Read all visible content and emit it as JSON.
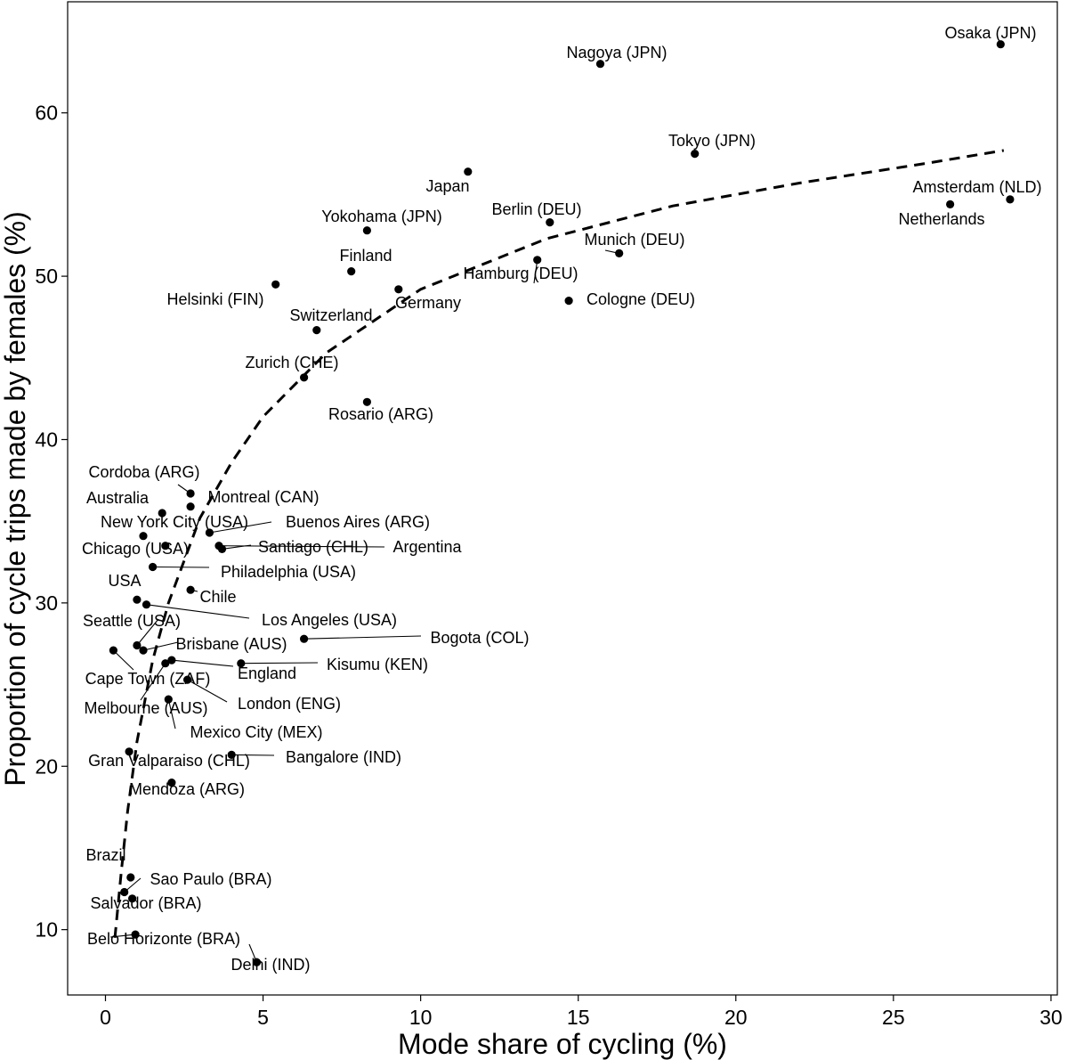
{
  "chart_data": {
    "type": "scatter",
    "title": "",
    "xlabel": "Mode share of cycling (%)",
    "ylabel": "Proportion of cycle trips made by females (%)",
    "xlim": [
      -1.2,
      30.2
    ],
    "ylim": [
      6.0,
      66.8
    ],
    "xticks": [
      0,
      5,
      10,
      15,
      20,
      25,
      30
    ],
    "yticks": [
      10,
      20,
      30,
      40,
      50,
      60
    ],
    "grid": false,
    "legend": "none",
    "trend": {
      "style": "dashed",
      "form": "logarithmic fit",
      "points": [
        [
          0.3,
          9.5
        ],
        [
          0.5,
          13.5
        ],
        [
          0.7,
          17.2
        ],
        [
          1.0,
          21.5
        ],
        [
          1.5,
          26.5
        ],
        [
          2.0,
          30.0
        ],
        [
          3.0,
          35.2
        ],
        [
          4.0,
          38.6
        ],
        [
          5.0,
          41.4
        ],
        [
          7.0,
          45.3
        ],
        [
          10.0,
          49.2
        ],
        [
          14.0,
          52.3
        ],
        [
          18.0,
          54.3
        ],
        [
          22.0,
          55.7
        ],
        [
          26.0,
          56.9
        ],
        [
          28.5,
          57.7
        ]
      ]
    },
    "points": [
      {
        "name": "Osaka (JPN)",
        "x": 28.4,
        "y": 64.2
      },
      {
        "name": "Nagoya (JPN)",
        "x": 15.7,
        "y": 63.0
      },
      {
        "name": "Tokyo (JPN)",
        "x": 18.7,
        "y": 57.5
      },
      {
        "name": "Japan",
        "x": 11.5,
        "y": 56.4
      },
      {
        "name": "Amsterdam (NLD)",
        "x": 28.7,
        "y": 54.7
      },
      {
        "name": "Netherlands",
        "x": 26.8,
        "y": 54.4
      },
      {
        "name": "Berlin (DEU)",
        "x": 14.1,
        "y": 53.3
      },
      {
        "name": "Yokohama (JPN)",
        "x": 8.3,
        "y": 52.8
      },
      {
        "name": "Munich (DEU)",
        "x": 16.3,
        "y": 51.4
      },
      {
        "name": "Hamburg (DEU)",
        "x": 13.7,
        "y": 51.0
      },
      {
        "name": "Finland",
        "x": 7.8,
        "y": 50.3
      },
      {
        "name": "Helsinki (FIN)",
        "x": 5.4,
        "y": 49.5
      },
      {
        "name": "Germany",
        "x": 9.3,
        "y": 49.2
      },
      {
        "name": "Cologne (DEU)",
        "x": 14.7,
        "y": 48.5
      },
      {
        "name": "Switzerland",
        "x": 6.7,
        "y": 46.7
      },
      {
        "name": "Zurich (CHE)",
        "x": 6.3,
        "y": 43.8
      },
      {
        "name": "Rosario (ARG)",
        "x": 8.3,
        "y": 42.3
      },
      {
        "name": "Cordoba (ARG)",
        "x": 2.7,
        "y": 36.7
      },
      {
        "name": "Montreal (CAN)",
        "x": 2.7,
        "y": 35.9
      },
      {
        "name": "Australia",
        "x": 1.8,
        "y": 35.5
      },
      {
        "name": "Buenos Aires (ARG)",
        "x": 3.3,
        "y": 34.3
      },
      {
        "name": "New York City (USA)",
        "x": 1.2,
        "y": 34.1
      },
      {
        "name": "Argentina",
        "x": 3.6,
        "y": 33.5
      },
      {
        "name": "Santiago (CHL)",
        "x": 3.7,
        "y": 33.3
      },
      {
        "name": "Chicago (USA)",
        "x": 1.9,
        "y": 33.5
      },
      {
        "name": "Philadelphia (USA)",
        "x": 1.5,
        "y": 32.2
      },
      {
        "name": "Chile",
        "x": 2.7,
        "y": 30.8
      },
      {
        "name": "USA",
        "x": 1.0,
        "y": 30.2
      },
      {
        "name": "Los Angeles (USA)",
        "x": 1.3,
        "y": 29.9
      },
      {
        "name": "Bogota (COL)",
        "x": 6.3,
        "y": 27.8
      },
      {
        "name": "Seattle (USA)",
        "x": 1.0,
        "y": 27.4
      },
      {
        "name": "Cape Town (ZAF)",
        "x": 0.25,
        "y": 27.1
      },
      {
        "name": "Brisbane (AUS)",
        "x": 1.2,
        "y": 27.1
      },
      {
        "name": "England",
        "x": 2.1,
        "y": 26.5
      },
      {
        "name": "Melbourne (AUS)",
        "x": 1.9,
        "y": 26.3
      },
      {
        "name": "Kisumu (KEN)",
        "x": 4.3,
        "y": 26.3
      },
      {
        "name": "London (ENG)",
        "x": 2.6,
        "y": 25.3
      },
      {
        "name": "Mexico City (MEX)",
        "x": 2.0,
        "y": 24.1
      },
      {
        "name": "Gran Valparaiso (CHL)",
        "x": 0.75,
        "y": 20.9
      },
      {
        "name": "Bangalore (IND)",
        "x": 4.0,
        "y": 20.7
      },
      {
        "name": "Mendoza (ARG)",
        "x": 2.1,
        "y": 19.0
      },
      {
        "name": "Brazil",
        "x": 0.8,
        "y": 13.2
      },
      {
        "name": "Sao Paulo (BRA)",
        "x": 0.6,
        "y": 12.3
      },
      {
        "name": "Salvador (BRA)",
        "x": 0.85,
        "y": 11.9
      },
      {
        "name": "Belo Horizonte (BRA)",
        "x": 0.95,
        "y": 9.7
      },
      {
        "name": "Delhi (IND)",
        "x": 4.8,
        "y": 8.0
      }
    ]
  }
}
